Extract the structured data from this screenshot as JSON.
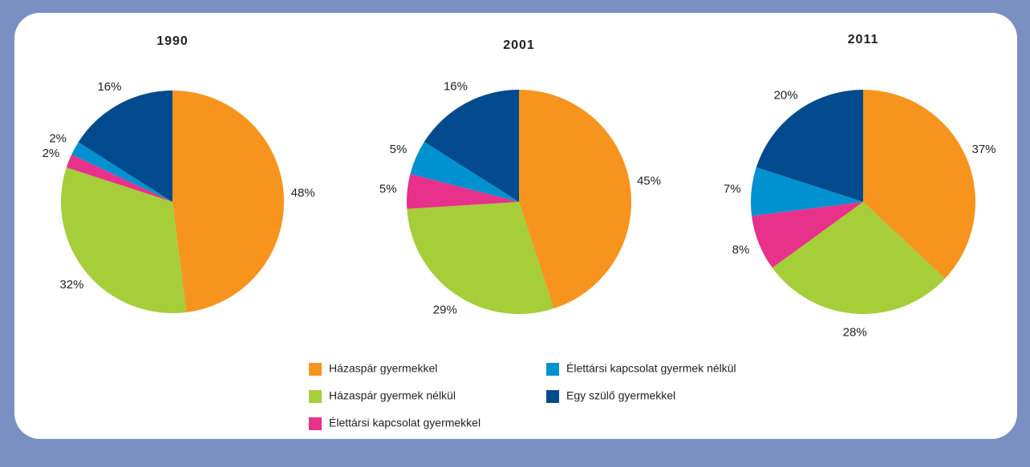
{
  "chart_data": [
    {
      "type": "pie",
      "title": "1990",
      "categories": [
        "Házaspár gyermekkel",
        "Házaspár gyermek nélkül",
        "Élettársi kapcsolat gyermekkel",
        "Élettársi kapcsolat gyermek nélkül",
        "Egy szülő gyermekkel"
      ],
      "values": [
        48,
        32,
        2,
        2,
        16
      ],
      "value_labels": [
        "48%",
        "32%",
        "2%",
        "2%",
        "16%"
      ],
      "colors": [
        "#f7941d",
        "#a6ce39",
        "#e8318a",
        "#0091d0",
        "#004a8d"
      ]
    },
    {
      "type": "pie",
      "title": "2001",
      "categories": [
        "Házaspár gyermekkel",
        "Házaspár gyermek nélkül",
        "Élettársi kapcsolat gyermekkel",
        "Élettársi kapcsolat gyermek nélkül",
        "Egy szülő gyermekkel"
      ],
      "values": [
        45,
        29,
        5,
        5,
        16
      ],
      "value_labels": [
        "45%",
        "29%",
        "5%",
        "5%",
        "16%"
      ],
      "colors": [
        "#f7941d",
        "#a6ce39",
        "#e8318a",
        "#0091d0",
        "#004a8d"
      ]
    },
    {
      "type": "pie",
      "title": "2011",
      "categories": [
        "Házaspár gyermekkel",
        "Házaspár gyermek nélkül",
        "Élettársi kapcsolat gyermekkel",
        "Élettársi kapcsolat gyermek nélkül",
        "Egy szülő gyermekkel"
      ],
      "values": [
        37,
        28,
        8,
        7,
        20
      ],
      "value_labels": [
        "37%",
        "28%",
        "8%",
        "7%",
        "20%"
      ],
      "colors": [
        "#f7941d",
        "#a6ce39",
        "#e8318a",
        "#0091d0",
        "#004a8d"
      ]
    }
  ]
}
